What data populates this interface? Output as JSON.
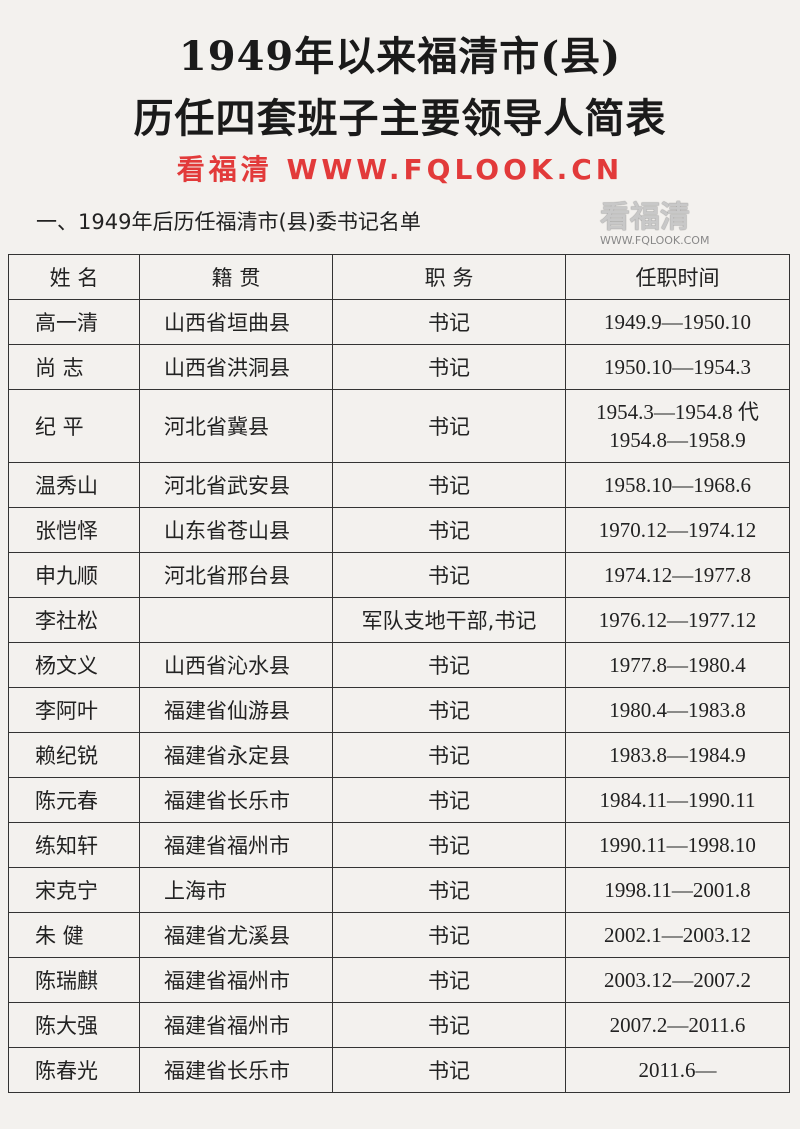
{
  "title_line1": "1949年以来福清市(县)",
  "title_line2": "历任四套班子主要领导人简表",
  "section_title": "一、1949年后历任福清市(县)委书记名单",
  "table": {
    "headers": [
      "姓  名",
      "籍  贯",
      "职  务",
      "任职时间"
    ],
    "rows": [
      {
        "name": "高一清",
        "origin": "山西省垣曲县",
        "position": "书记",
        "term": "1949.9—1950.10"
      },
      {
        "name": "尚  志",
        "origin": "山西省洪洞县",
        "position": "书记",
        "term": "1950.10—1954.3"
      },
      {
        "name": "纪  平",
        "origin": "河北省冀县",
        "position": "书记",
        "term": "1954.3—1954.8 代",
        "term2": "1954.8—1958.9"
      },
      {
        "name": "温秀山",
        "origin": "河北省武安县",
        "position": "书记",
        "term": "1958.10—1968.6"
      },
      {
        "name": "张恺怿",
        "origin": "山东省苍山县",
        "position": "书记",
        "term": "1970.12—1974.12"
      },
      {
        "name": "申九顺",
        "origin": "河北省邢台县",
        "position": "书记",
        "term": "1974.12—1977.8"
      },
      {
        "name": "李社松",
        "origin": "",
        "position": "军队支地干部,书记",
        "term": "1976.12—1977.12"
      },
      {
        "name": "杨文义",
        "origin": "山西省沁水县",
        "position": "书记",
        "term": "1977.8—1980.4"
      },
      {
        "name": "李阿叶",
        "origin": "福建省仙游县",
        "position": "书记",
        "term": "1980.4—1983.8"
      },
      {
        "name": "赖纪锐",
        "origin": "福建省永定县",
        "position": "书记",
        "term": "1983.8—1984.9"
      },
      {
        "name": "陈元春",
        "origin": "福建省长乐市",
        "position": "书记",
        "term": "1984.11—1990.11"
      },
      {
        "name": "练知轩",
        "origin": "福建省福州市",
        "position": "书记",
        "term": "1990.11—1998.10"
      },
      {
        "name": "宋克宁",
        "origin": "上海市",
        "position": "书记",
        "term": "1998.11—2001.8"
      },
      {
        "name": "朱  健",
        "origin": "福建省尤溪县",
        "position": "书记",
        "term": "2002.1—2003.12"
      },
      {
        "name": "陈瑞麒",
        "origin": "福建省福州市",
        "position": "书记",
        "term": "2003.12—2007.2"
      },
      {
        "name": "陈大强",
        "origin": "福建省福州市",
        "position": "书记",
        "term": "2007.2—2011.6"
      },
      {
        "name": "陈春光",
        "origin": "福建省长乐市",
        "position": "书记",
        "term": "2011.6—"
      }
    ]
  },
  "watermark": {
    "diagonal": "看福清 WWW.FQLOOK.CN",
    "logo": "看福清",
    "logo_url_text": "WWW.FQLOOK.COM",
    "color": "#e62828"
  }
}
